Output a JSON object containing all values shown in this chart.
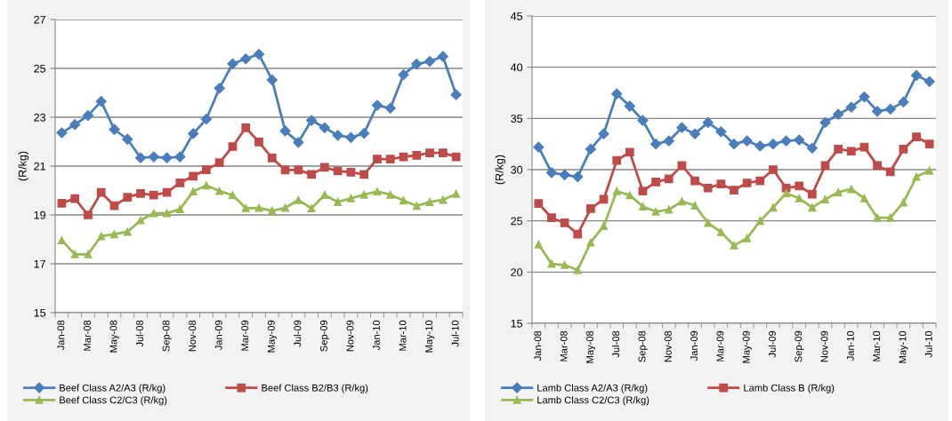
{
  "chart_data": [
    {
      "type": "line",
      "ylabel": "(R/kg)",
      "ylim": [
        15,
        27
      ],
      "yticks": [
        15,
        17,
        19,
        21,
        23,
        25,
        27
      ],
      "grid": "y",
      "legend": "bottom",
      "categories": [
        "Jan-08",
        null,
        "Mar-08",
        null,
        "May-08",
        null,
        "Jul-08",
        null,
        "Sep-08",
        null,
        "Nov-08",
        null,
        "Jan-09",
        null,
        "Mar-09",
        null,
        "May-09",
        null,
        "Jul-09",
        null,
        "Sep-09",
        null,
        "Nov-09",
        null,
        "Jan-10",
        null,
        "Mar-10",
        null,
        "May-10",
        null,
        "Jul-10"
      ],
      "series": [
        {
          "name": "Beef Class A2/A3 (R/kg)",
          "color": "#4a7ebb",
          "marker": "diamond",
          "values": [
            22.36,
            22.7,
            23.07,
            23.65,
            22.5,
            22.1,
            21.34,
            21.38,
            21.34,
            21.38,
            22.33,
            22.92,
            24.19,
            25.19,
            25.39,
            25.58,
            24.53,
            22.44,
            21.97,
            22.87,
            22.57,
            22.26,
            22.17,
            22.34,
            23.49,
            23.37,
            24.74,
            25.18,
            25.29,
            25.49,
            23.92
          ]
        },
        {
          "name": "Beef Class B2/B3 (R/kg)",
          "color": "#be4b48",
          "marker": "square",
          "values": [
            19.48,
            19.67,
            19.0,
            19.92,
            19.38,
            19.72,
            19.88,
            19.81,
            19.92,
            20.31,
            20.59,
            20.85,
            21.14,
            21.8,
            22.57,
            21.99,
            21.33,
            20.84,
            20.84,
            20.66,
            20.95,
            20.8,
            20.75,
            20.66,
            21.29,
            21.29,
            21.38,
            21.44,
            21.54,
            21.54,
            21.38
          ]
        },
        {
          "name": "Beef Class C2/C3 (R/kg)",
          "color": "#98b954",
          "marker": "triangle",
          "values": [
            17.96,
            17.39,
            17.39,
            18.13,
            18.21,
            18.31,
            18.78,
            19.07,
            19.07,
            19.24,
            19.96,
            20.21,
            19.98,
            19.81,
            19.28,
            19.29,
            19.17,
            19.29,
            19.61,
            19.27,
            19.82,
            19.53,
            19.68,
            19.83,
            19.96,
            19.83,
            19.59,
            19.37,
            19.53,
            19.62,
            19.86
          ]
        }
      ]
    },
    {
      "type": "line",
      "ylabel": "(R/kg)",
      "ylim": [
        15,
        45
      ],
      "yticks": [
        15,
        20,
        25,
        30,
        35,
        40,
        45
      ],
      "grid": "y",
      "legend": "bottom",
      "categories": [
        "Jan-08",
        null,
        "Mar-08",
        null,
        "May-08",
        null,
        "Jul-08",
        null,
        "Sep-08",
        null,
        "Nov-08",
        null,
        "Jan-09",
        null,
        "Mar-09",
        null,
        "May-09",
        null,
        "Jul-09",
        null,
        "Sep-09",
        null,
        "Nov-09",
        null,
        "Jan-10",
        null,
        "Mar-10",
        null,
        "May-10",
        null,
        "Jul-10"
      ],
      "series": [
        {
          "name": "Lamb Class A2/A3 (R/kg)",
          "color": "#4a7ebb",
          "marker": "diamond",
          "values": [
            32.2,
            29.7,
            29.5,
            29.3,
            32.0,
            33.5,
            37.4,
            36.2,
            34.8,
            32.5,
            32.8,
            34.1,
            33.5,
            34.6,
            33.7,
            32.5,
            32.8,
            32.3,
            32.5,
            32.8,
            32.9,
            32.1,
            34.6,
            35.4,
            36.1,
            37.1,
            35.7,
            35.9,
            36.6,
            39.2,
            38.6
          ]
        },
        {
          "name": "Lamb Class B (R/kg)",
          "color": "#be4b48",
          "marker": "square",
          "values": [
            26.7,
            25.3,
            24.8,
            23.7,
            26.2,
            27.1,
            30.9,
            31.7,
            27.9,
            28.8,
            29.1,
            30.4,
            28.9,
            28.2,
            28.6,
            28.0,
            28.7,
            28.9,
            30.0,
            28.2,
            28.4,
            27.6,
            30.4,
            32.0,
            31.8,
            32.2,
            30.4,
            29.8,
            32.0,
            33.2,
            32.5
          ]
        },
        {
          "name": "Lamb Class C2/C3 (R/kg)",
          "color": "#98b954",
          "marker": "triangle",
          "values": [
            22.7,
            20.8,
            20.7,
            20.2,
            22.9,
            24.5,
            27.9,
            27.5,
            26.4,
            25.9,
            26.1,
            26.9,
            26.5,
            24.8,
            23.9,
            22.6,
            23.3,
            25.0,
            26.3,
            27.7,
            27.2,
            26.3,
            27.1,
            27.8,
            28.1,
            27.2,
            25.3,
            25.3,
            26.8,
            29.3,
            29.9
          ]
        }
      ]
    }
  ]
}
